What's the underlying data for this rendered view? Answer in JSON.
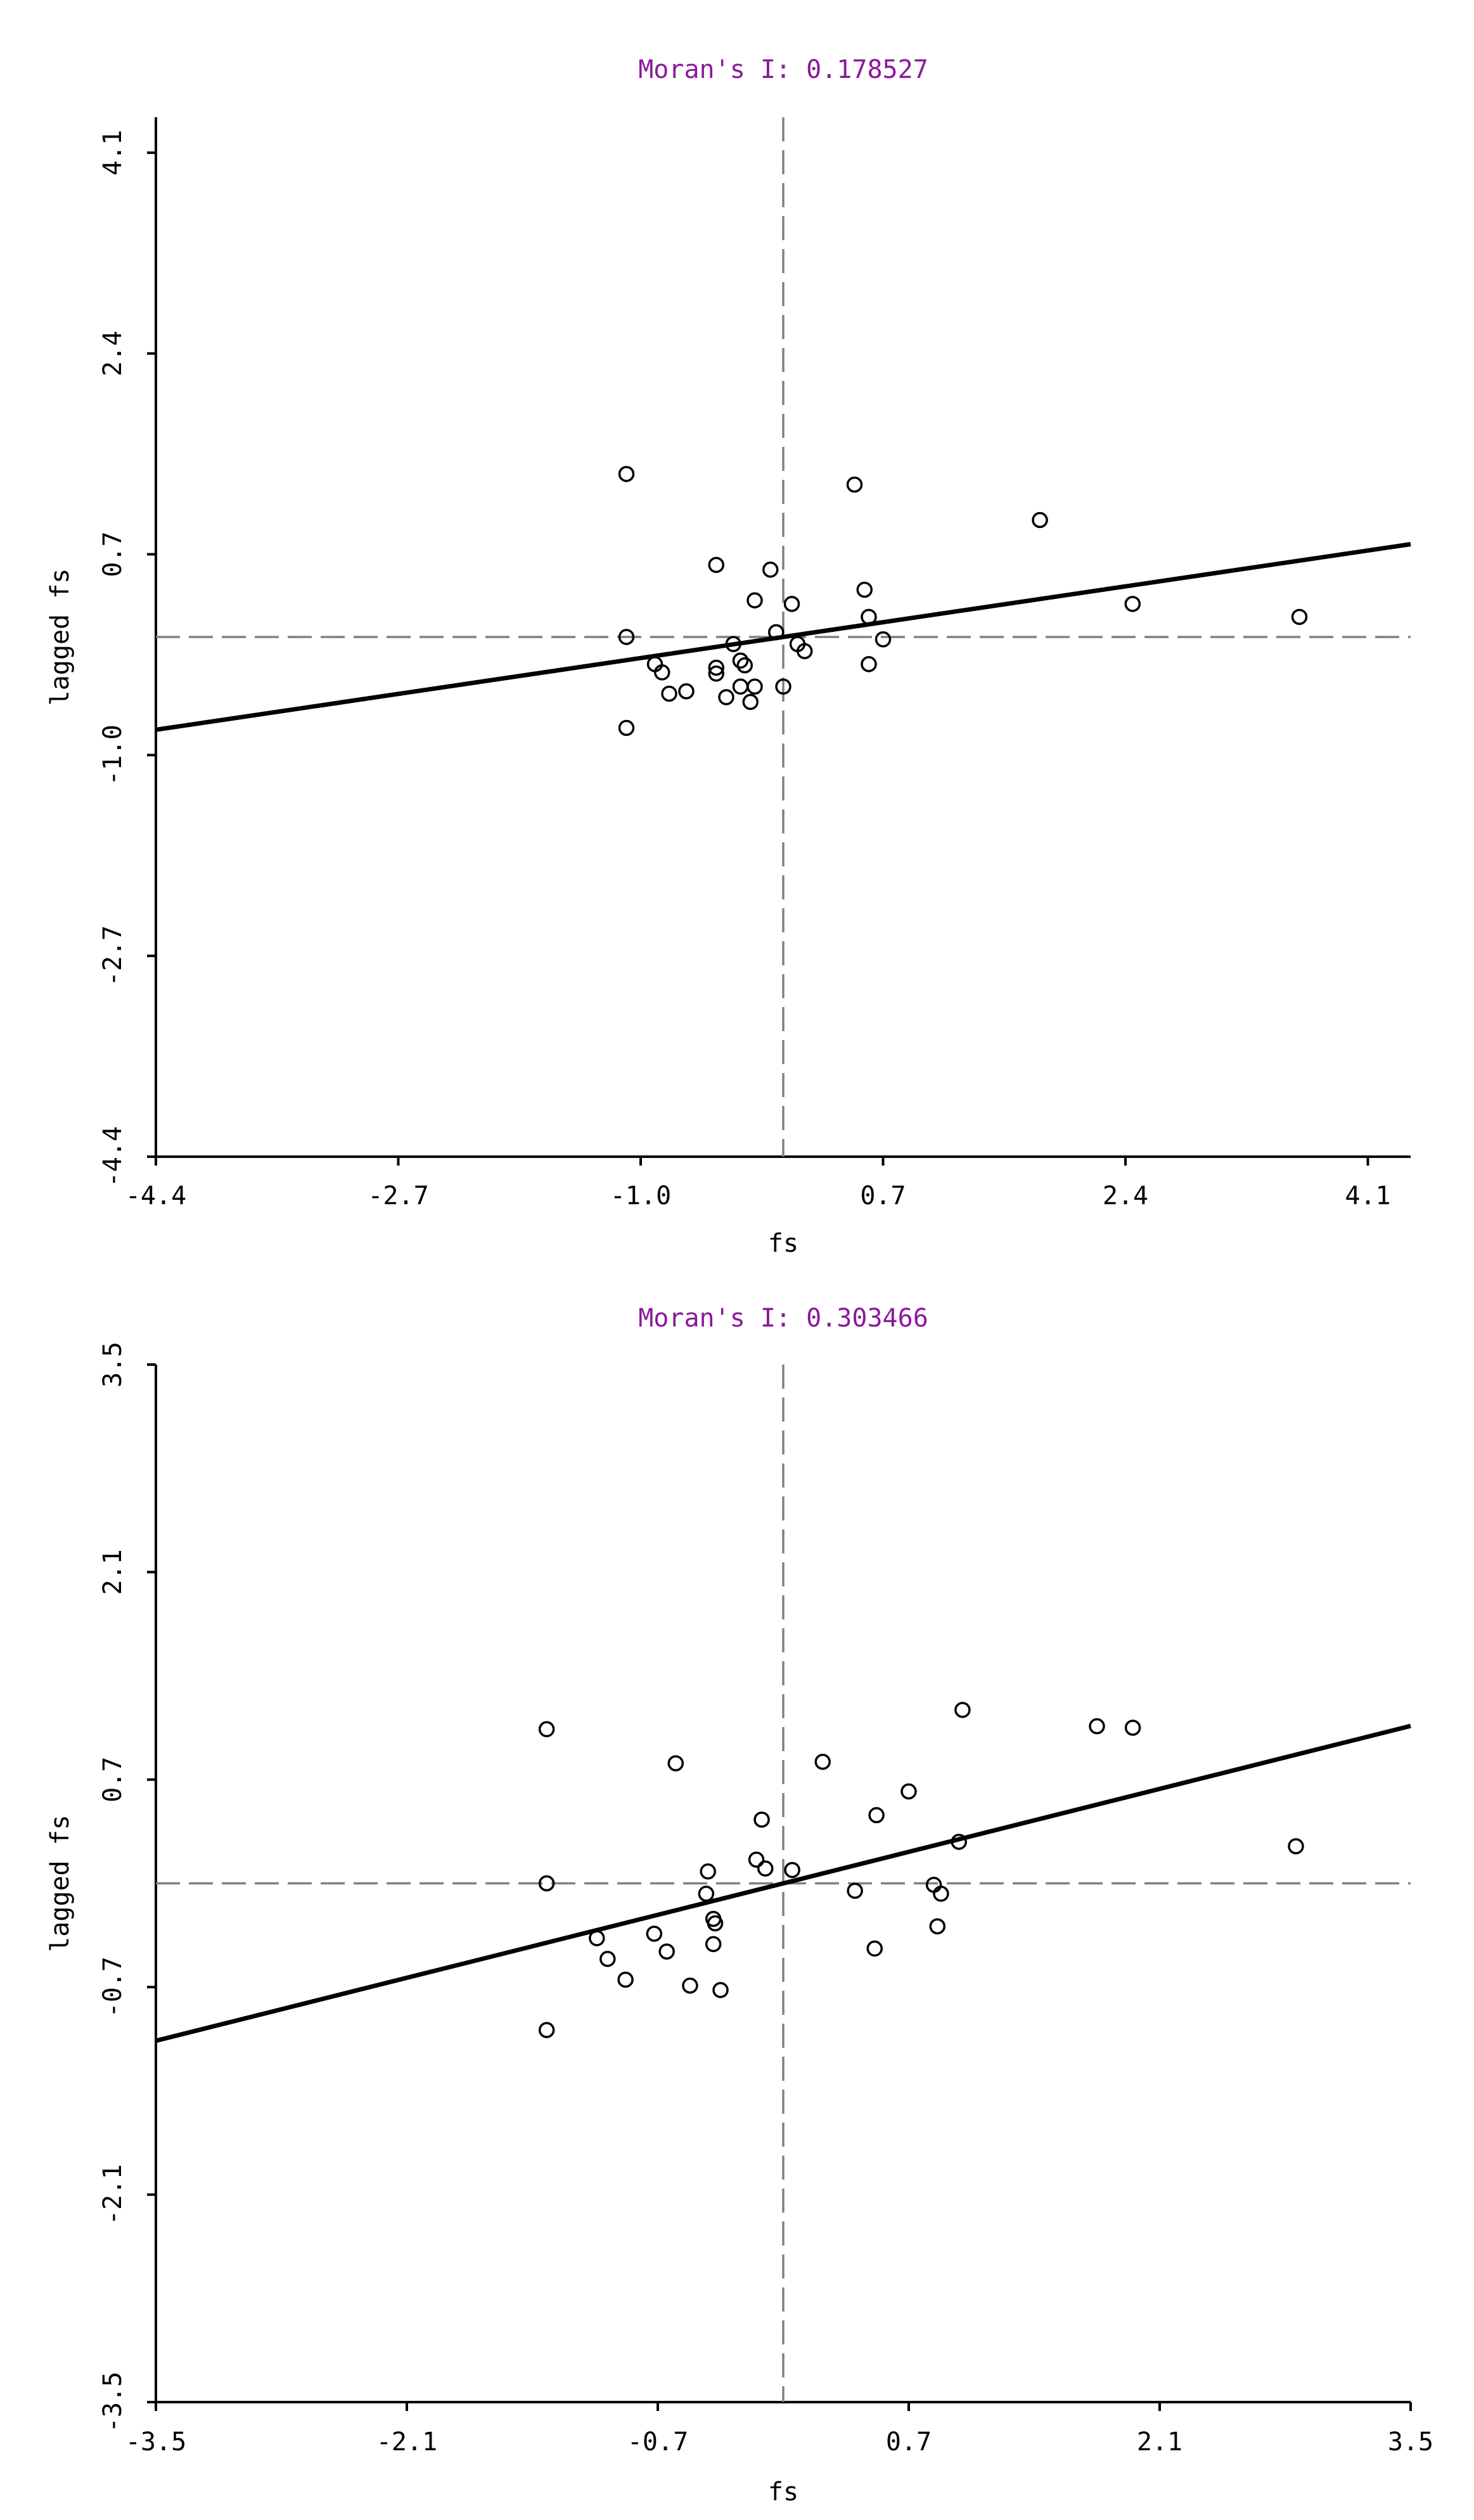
{
  "chart_data": [
    {
      "type": "scatter",
      "title": "Moran's I: 0.178527",
      "xlabel": "fs",
      "ylabel": "lagged fs",
      "xlim": [
        -4.4,
        4.4
      ],
      "ylim": [
        -4.4,
        4.4
      ],
      "xticks": [
        "-4.4",
        "-2.7",
        "-1.0",
        "0.7",
        "2.4",
        "4.1"
      ],
      "yticks": [
        "-4.4",
        "-2.7",
        "-1.0",
        "0.7",
        "2.4",
        "4.1"
      ],
      "xtick_values": [
        -4.4,
        -2.7,
        -1.0,
        0.7,
        2.4,
        4.1
      ],
      "ytick_values": [
        -4.4,
        -2.7,
        -1.0,
        0.7,
        2.4,
        4.1
      ],
      "reference_lines": {
        "x": 0,
        "y": 0
      },
      "regression_slope": 0.178527,
      "grid": false,
      "points": [
        [
          -1.1,
          1.38
        ],
        [
          0.5,
          1.29
        ],
        [
          1.8,
          0.99
        ],
        [
          -0.47,
          0.61
        ],
        [
          -0.09,
          0.57
        ],
        [
          -0.2,
          0.31
        ],
        [
          0.06,
          0.28
        ],
        [
          0.57,
          0.4
        ],
        [
          2.45,
          0.28
        ],
        [
          3.62,
          0.17
        ],
        [
          0.6,
          0.17
        ],
        [
          -1.1,
          0.0
        ],
        [
          -0.05,
          0.04
        ],
        [
          0.7,
          -0.02
        ],
        [
          0.1,
          -0.06
        ],
        [
          0.15,
          -0.12
        ],
        [
          -0.35,
          -0.06
        ],
        [
          0.6,
          -0.23
        ],
        [
          -0.9,
          -0.23
        ],
        [
          -0.85,
          -0.3
        ],
        [
          -0.47,
          -0.26
        ],
        [
          -0.47,
          -0.31
        ],
        [
          -0.3,
          -0.2
        ],
        [
          -0.27,
          -0.24
        ],
        [
          -0.8,
          -0.48
        ],
        [
          -0.68,
          -0.46
        ],
        [
          -0.3,
          -0.42
        ],
        [
          -0.2,
          -0.42
        ],
        [
          0.0,
          -0.42
        ],
        [
          -0.4,
          -0.51
        ],
        [
          -0.23,
          -0.55
        ],
        [
          -1.1,
          -0.77
        ]
      ]
    },
    {
      "type": "scatter",
      "title": "Moran's I: 0.303466",
      "xlabel": "fs",
      "ylabel": "lagged fs",
      "xlim": [
        -3.5,
        3.5
      ],
      "ylim": [
        -3.5,
        3.5
      ],
      "xticks": [
        "-3.5",
        "-2.1",
        "-0.7",
        "0.7",
        "2.1",
        "3.5"
      ],
      "yticks": [
        "-3.5",
        "-2.1",
        "-0.7",
        "0.7",
        "2.1",
        "3.5"
      ],
      "xtick_values": [
        -3.5,
        -2.1,
        -0.7,
        0.7,
        2.1,
        3.5
      ],
      "ytick_values": [
        -3.5,
        -2.1,
        -0.7,
        0.7,
        2.1,
        3.5
      ],
      "reference_lines": {
        "x": 0,
        "y": 0
      },
      "regression_slope": 0.303466,
      "grid": false,
      "points": [
        [
          -1.32,
          1.04
        ],
        [
          -0.6,
          0.81
        ],
        [
          0.22,
          0.82
        ],
        [
          1.0,
          1.17
        ],
        [
          1.75,
          1.06
        ],
        [
          1.95,
          1.05
        ],
        [
          0.7,
          0.62
        ],
        [
          -0.12,
          0.43
        ],
        [
          0.52,
          0.46
        ],
        [
          0.98,
          0.28
        ],
        [
          2.86,
          0.25
        ],
        [
          -0.15,
          0.16
        ],
        [
          -0.42,
          0.08
        ],
        [
          -0.1,
          0.1
        ],
        [
          0.05,
          0.09
        ],
        [
          -1.32,
          0.0
        ],
        [
          -0.43,
          -0.07
        ],
        [
          0.4,
          -0.05
        ],
        [
          0.84,
          -0.01
        ],
        [
          0.88,
          -0.07
        ],
        [
          -0.39,
          -0.24
        ],
        [
          -0.38,
          -0.27
        ],
        [
          0.86,
          -0.29
        ],
        [
          -1.04,
          -0.37
        ],
        [
          -0.72,
          -0.34
        ],
        [
          -0.39,
          -0.41
        ],
        [
          0.51,
          -0.44
        ],
        [
          -0.98,
          -0.51
        ],
        [
          -0.65,
          -0.46
        ],
        [
          -0.88,
          -0.65
        ],
        [
          -0.52,
          -0.69
        ],
        [
          -0.35,
          -0.72
        ],
        [
          -1.32,
          -0.99
        ]
      ]
    }
  ]
}
